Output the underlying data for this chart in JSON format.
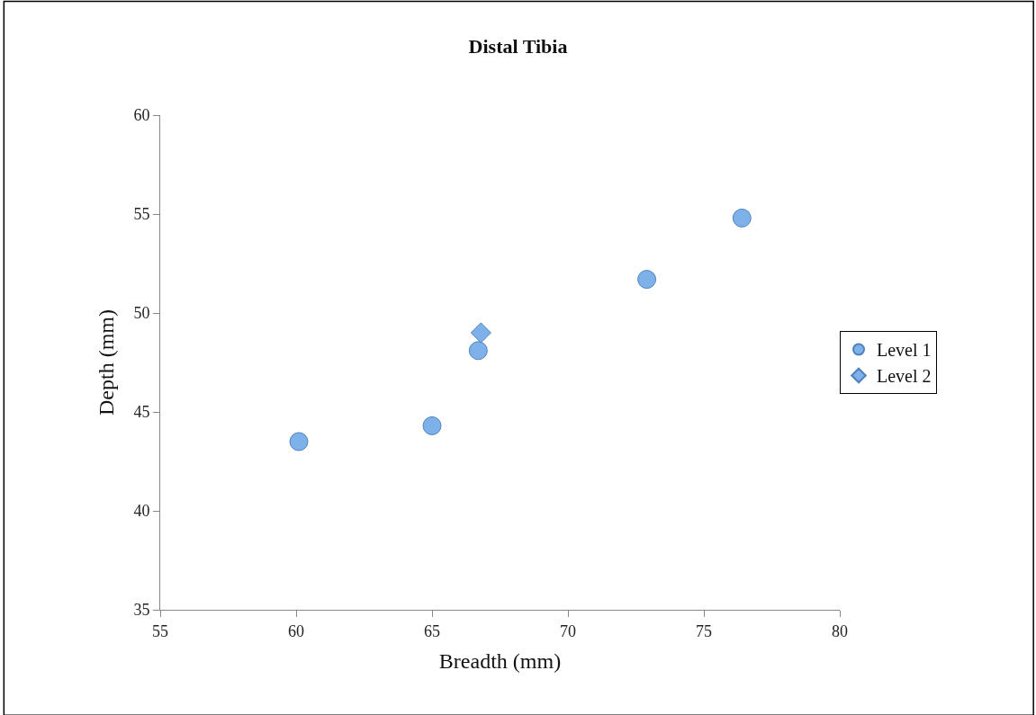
{
  "chart_data": {
    "type": "scatter",
    "title": "Distal Tibia",
    "xlabel": "Breadth (mm)",
    "ylabel": "Depth (mm)",
    "series": [
      {
        "name": "Level 1",
        "color": "#7eb1ea",
        "marker": "circle",
        "x": [
          60.1,
          65.0,
          66.7,
          72.9,
          76.4
        ],
        "values": [
          43.5,
          44.3,
          48.1,
          51.7,
          54.8
        ]
      },
      {
        "name": "Level 2",
        "color": "#7eb1ea",
        "marker": "diamond",
        "x": [
          66.8
        ],
        "values": [
          49.0
        ]
      }
    ],
    "xlim": [
      55,
      80
    ],
    "xticks": [
      55,
      60,
      65,
      70,
      75,
      80
    ],
    "ylim": [
      35,
      60
    ],
    "yticks": [
      35,
      40,
      45,
      50,
      55,
      60
    ],
    "legend": "right"
  }
}
